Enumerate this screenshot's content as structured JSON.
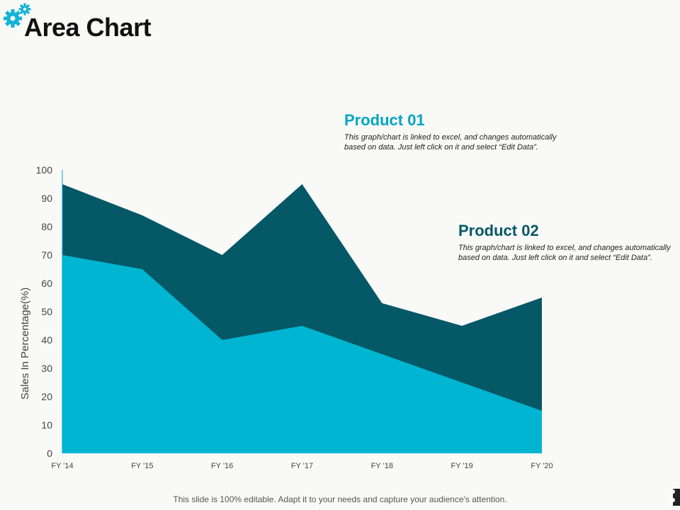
{
  "slide": {
    "title": "Area Chart",
    "footer": "This slide is 100% editable. Adapt it to your needs and capture your audience's attention."
  },
  "legend": [
    {
      "name": "Product 01",
      "description": "This graph/chart is linked to excel, and changes automatically based on data. Just left click on it and select “Edit Data”.",
      "color": "#00b5d1"
    },
    {
      "name": "Product 02",
      "description": "This graph/chart is linked to excel, and changes automatically based on data. Just left click on it and select “Edit Data”.",
      "color": "#055866"
    }
  ],
  "icons": {
    "header": "gear-icon",
    "corner": "puzzle-icon"
  },
  "chart_data": {
    "type": "area",
    "stacked": false,
    "title": "",
    "xlabel": "",
    "ylabel": "Sales In Percentage(%)",
    "ylim": [
      0,
      100
    ],
    "yticks": [
      0,
      10,
      20,
      30,
      40,
      50,
      60,
      70,
      80,
      90,
      100
    ],
    "categories": [
      "FY '14",
      "FY '15",
      "FY '16",
      "FY '17",
      "FY '18",
      "FY '19",
      "FY '20"
    ],
    "series": [
      {
        "name": "Product 02",
        "color": "#055866",
        "values": [
          95,
          84,
          70,
          95,
          53,
          45,
          55
        ]
      },
      {
        "name": "Product 01",
        "color": "#00b5d1",
        "values": [
          70,
          65,
          40,
          45,
          35,
          25,
          15
        ]
      }
    ]
  }
}
